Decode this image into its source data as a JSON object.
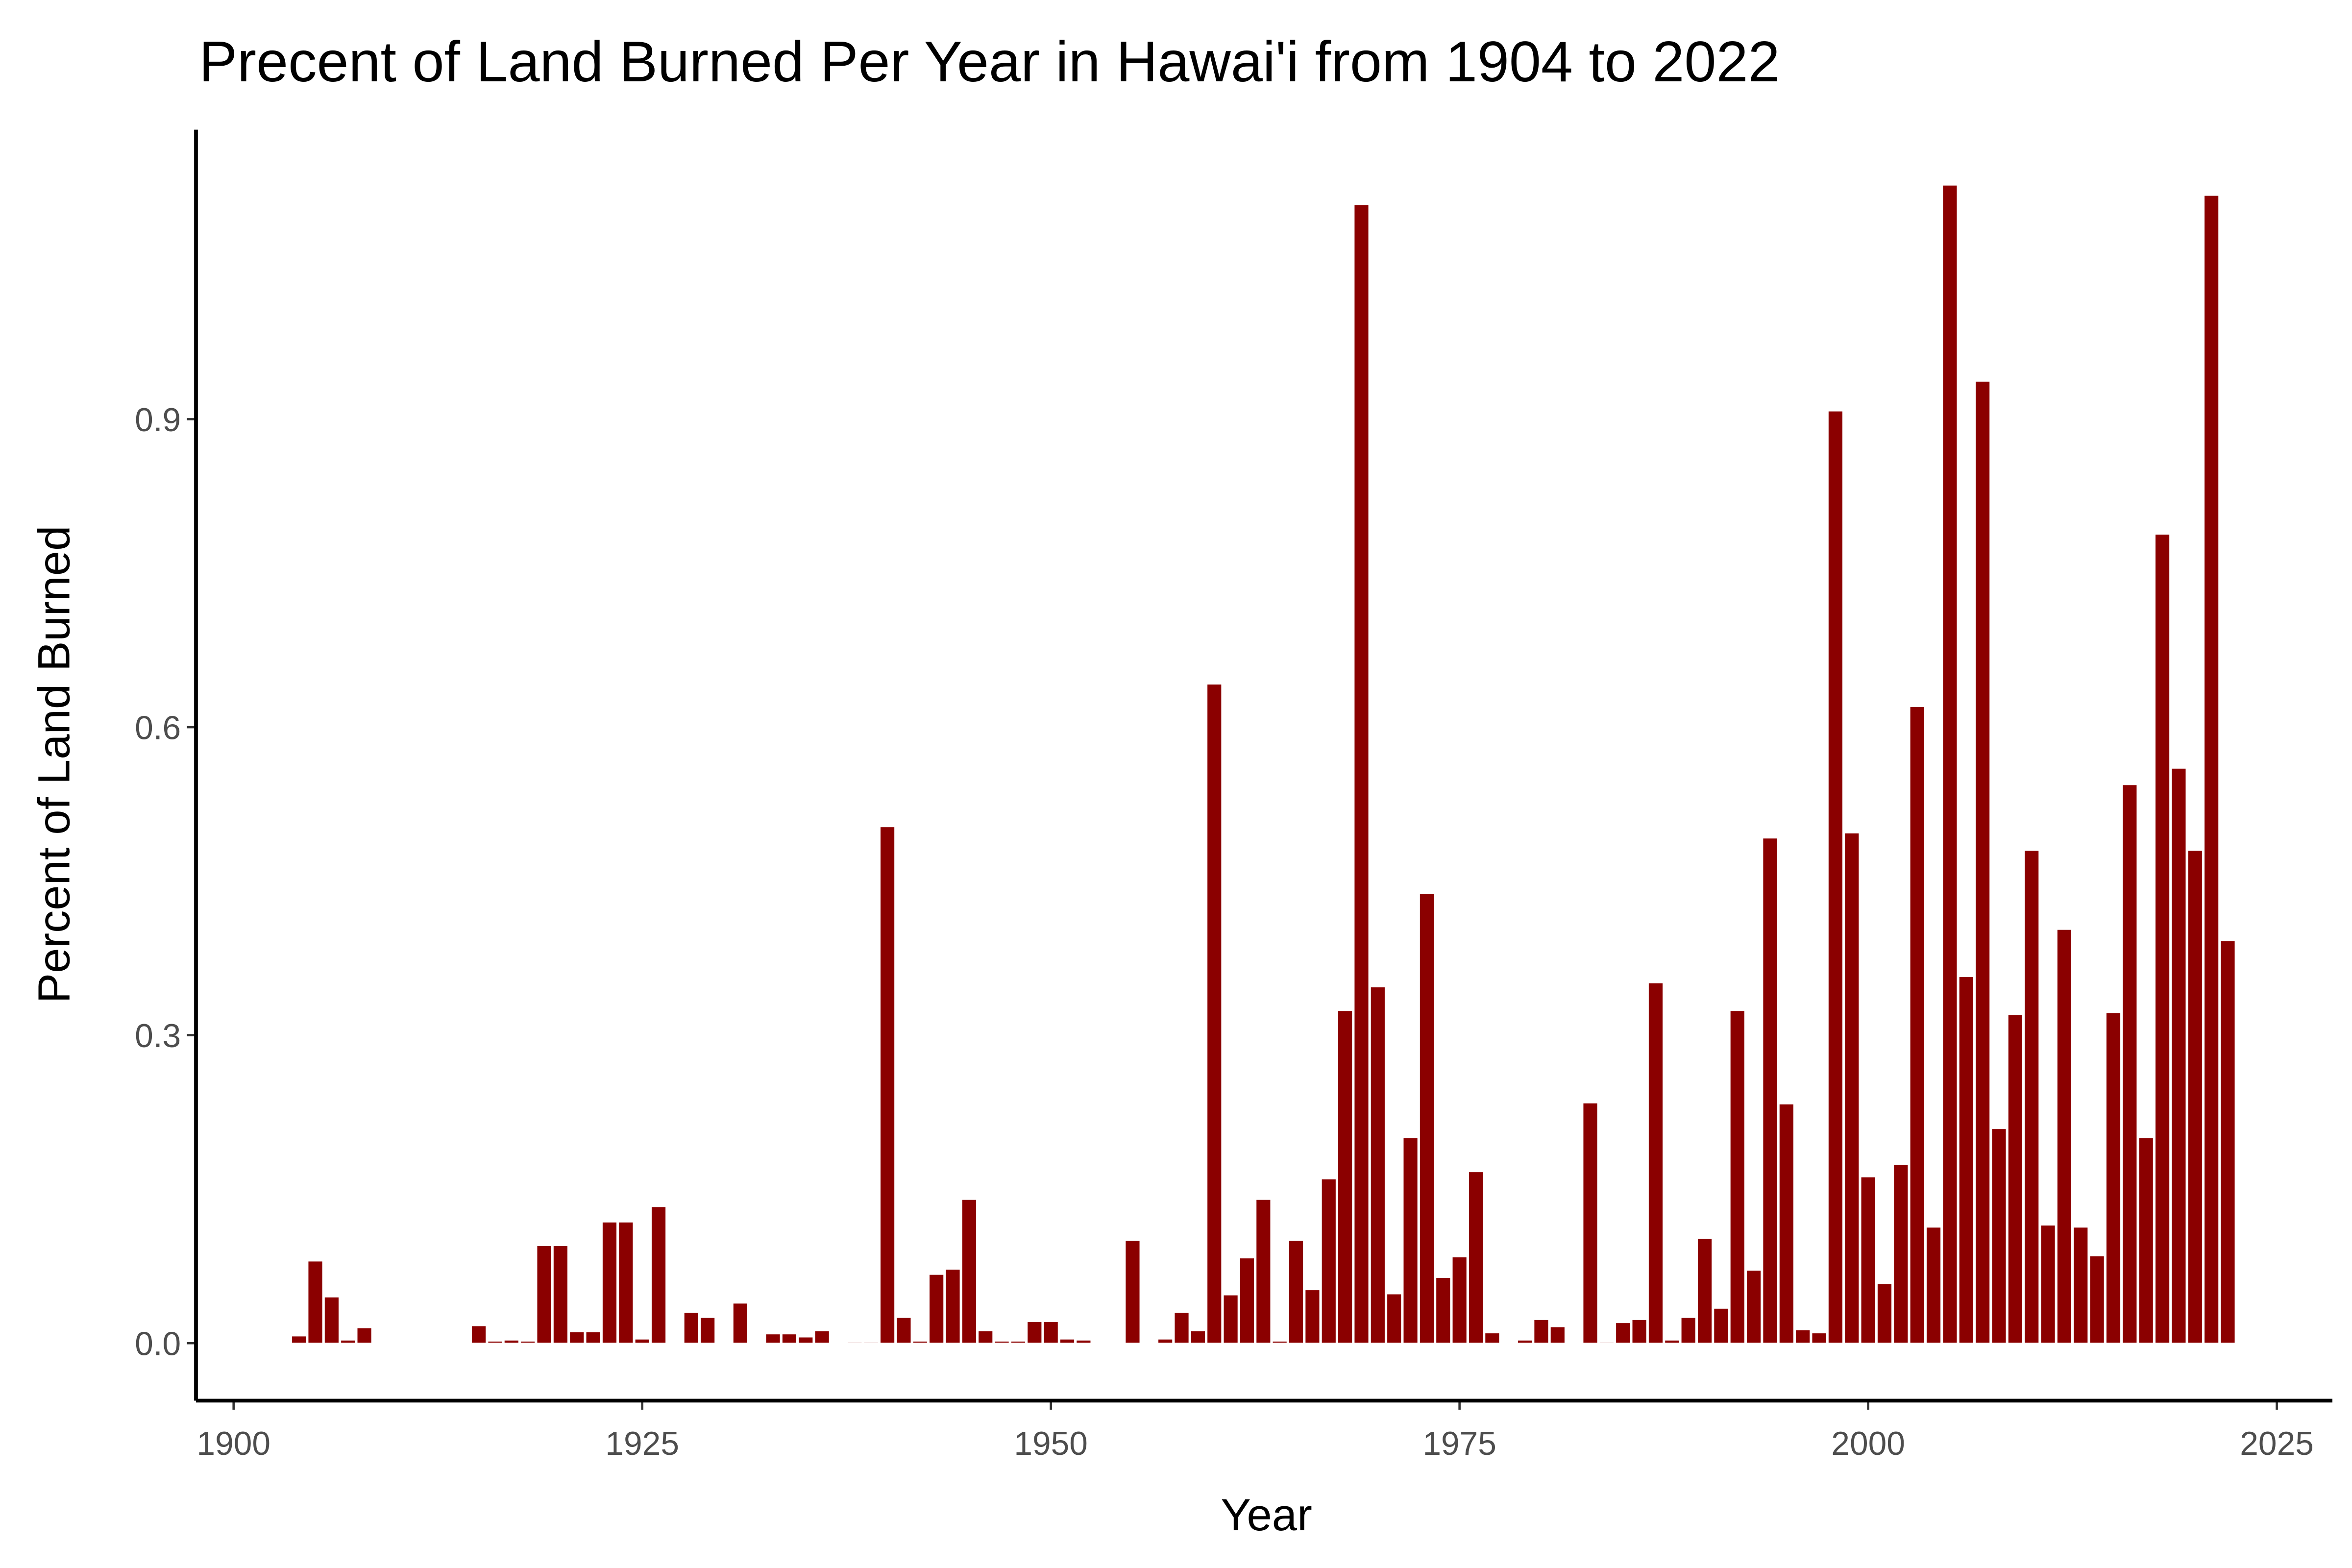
{
  "chart_data": {
    "type": "bar",
    "title": "Precent of Land Burned Per Year in Hawai'i from 1904 to 2022",
    "x_label": "Year",
    "y_label": "Percent of Land Burned",
    "color": "#8b0000",
    "x": [
      1904,
      1905,
      1906,
      1907,
      1908,
      1909,
      1910,
      1911,
      1912,
      1913,
      1914,
      1915,
      1916,
      1917,
      1918,
      1919,
      1920,
      1921,
      1922,
      1923,
      1924,
      1925,
      1926,
      1927,
      1928,
      1929,
      1930,
      1931,
      1932,
      1933,
      1934,
      1935,
      1936,
      1937,
      1938,
      1939,
      1940,
      1941,
      1942,
      1943,
      1944,
      1945,
      1946,
      1947,
      1948,
      1949,
      1950,
      1951,
      1952,
      1953,
      1954,
      1955,
      1956,
      1957,
      1958,
      1959,
      1960,
      1961,
      1962,
      1963,
      1964,
      1965,
      1966,
      1967,
      1968,
      1969,
      1970,
      1971,
      1972,
      1973,
      1974,
      1975,
      1976,
      1977,
      1978,
      1979,
      1980,
      1981,
      1982,
      1983,
      1984,
      1985,
      1986,
      1987,
      1988,
      1989,
      1990,
      1991,
      1992,
      1993,
      1994,
      1995,
      1996,
      1997,
      1998,
      1999,
      2000,
      2001,
      2002,
      2003,
      2004,
      2005,
      2006,
      2007,
      2008,
      2009,
      2010,
      2011,
      2012,
      2013,
      2014,
      2015,
      2016,
      2017,
      2018,
      2019,
      2020,
      2021,
      2022
    ],
    "values": [
      0.007,
      0.08,
      0.045,
      0.003,
      0.015,
      null,
      null,
      null,
      null,
      null,
      null,
      0.017,
      0.002,
      0.003,
      0.002,
      0.095,
      0.095,
      0.011,
      0.011,
      0.118,
      0.118,
      0.004,
      0.133,
      null,
      0.03,
      0.025,
      null,
      0.039,
      null,
      0.009,
      0.009,
      0.006,
      0.012,
      null,
      0.001,
      0.001,
      0.503,
      0.025,
      0.002,
      0.067,
      0.072,
      0.14,
      0.012,
      0.002,
      0.002,
      0.021,
      0.021,
      0.004,
      0.003,
      null,
      null,
      0.1,
      null,
      0.004,
      0.03,
      0.012,
      0.642,
      0.047,
      0.083,
      0.14,
      0.002,
      0.1,
      0.052,
      0.16,
      0.324,
      1.109,
      0.347,
      0.048,
      0.2,
      0.438,
      0.064,
      0.084,
      0.167,
      0.01,
      null,
      0.003,
      0.023,
      0.016,
      null,
      0.234,
      0.001,
      0.02,
      0.023,
      0.351,
      0.003,
      0.025,
      0.102,
      0.034,
      0.324,
      0.071,
      0.492,
      0.233,
      0.013,
      0.01,
      0.908,
      0.497,
      0.162,
      0.058,
      0.174,
      0.62,
      0.113,
      1.128,
      0.357,
      0.937,
      0.209,
      0.32,
      0.48,
      0.115,
      0.403,
      0.113,
      0.085,
      0.322,
      0.544,
      0.2,
      0.788,
      0.56,
      0.48,
      1.118,
      0.392
    ],
    "xlim": [
      1897.7,
      2028.4
    ],
    "xticks": [
      1900,
      1925,
      1950,
      1975,
      2000,
      2025
    ],
    "ylim": [
      -0.056,
      1.182
    ],
    "yticks": [
      {
        "value": 0,
        "label": "0.0"
      },
      0.3,
      0.6,
      0.9
    ]
  }
}
